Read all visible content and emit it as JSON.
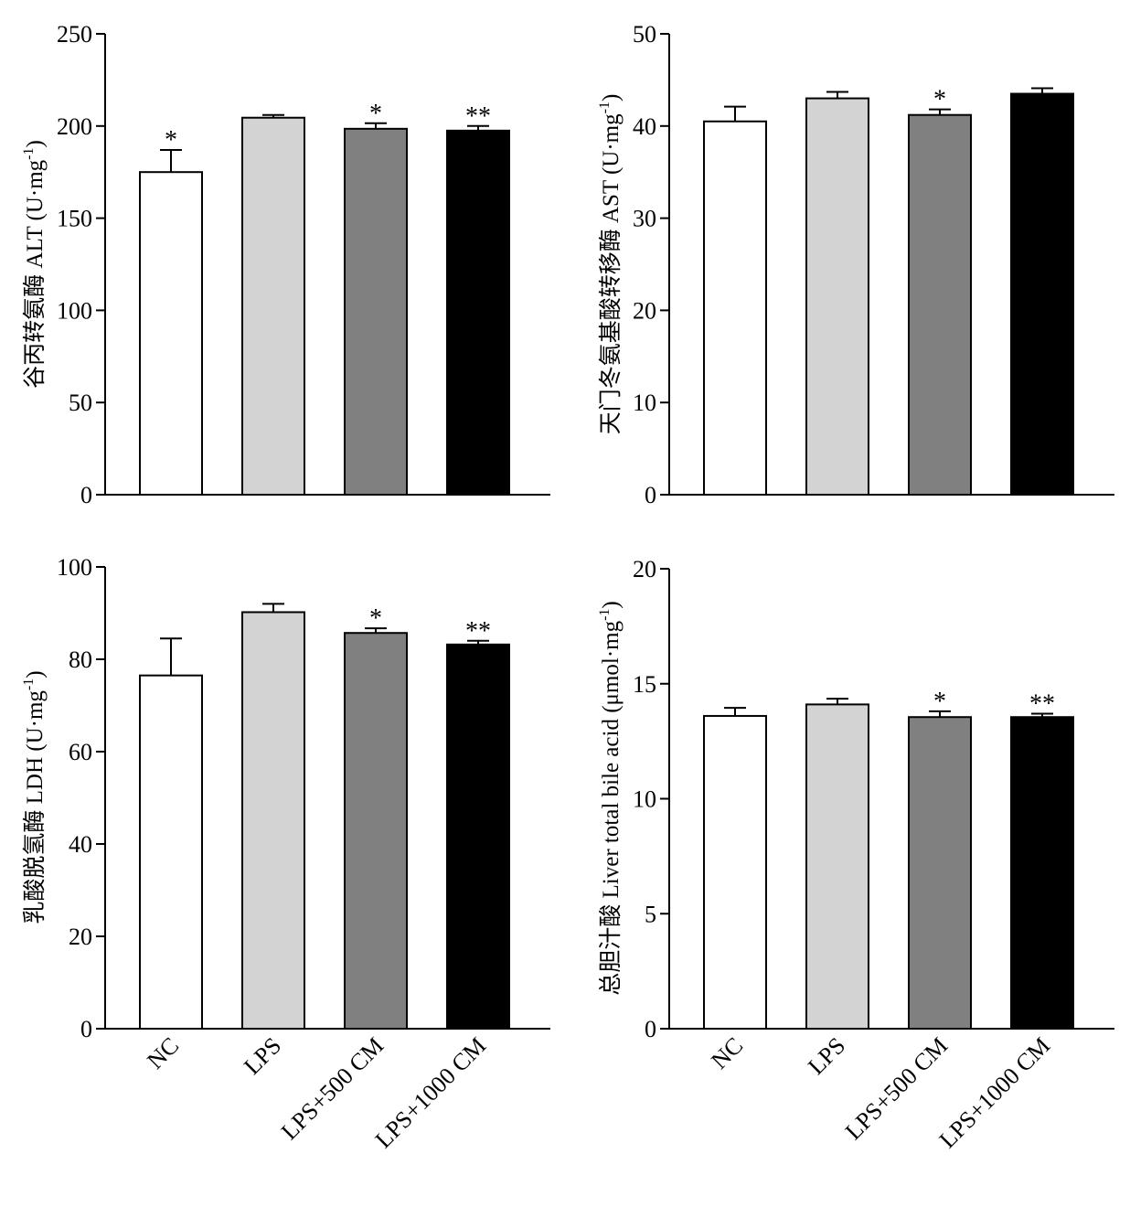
{
  "chart_data": [
    {
      "type": "bar",
      "categories": [
        "NC",
        "LPS",
        "LPS+500 CM",
        "LPS+1000 CM"
      ],
      "values": [
        175,
        204.5,
        198.5,
        197.5
      ],
      "errors": [
        12,
        1.5,
        3,
        2.5
      ],
      "significance": [
        "*",
        "",
        "*",
        "**"
      ],
      "bar_colors": [
        "#ffffff",
        "#d3d3d3",
        "#808080",
        "#000000"
      ],
      "ylabel_main": "谷丙转氨酶 ALT (U·mg",
      "ylabel_sup": "-1",
      "ylabel_end": ")",
      "ylim": [
        0,
        250
      ],
      "yticks": [
        0,
        50,
        100,
        150,
        200,
        250
      ],
      "show_categories": false
    },
    {
      "type": "bar",
      "categories": [
        "NC",
        "LPS",
        "LPS+500 CM",
        "LPS+1000 CM"
      ],
      "values": [
        40.5,
        43,
        41.2,
        43.5
      ],
      "errors": [
        1.6,
        0.7,
        0.6,
        0.6
      ],
      "significance": [
        "",
        "",
        "*",
        ""
      ],
      "bar_colors": [
        "#ffffff",
        "#d3d3d3",
        "#808080",
        "#000000"
      ],
      "ylabel_main": "天门冬氨基酸转移酶 AST (U·mg",
      "ylabel_sup": "-1",
      "ylabel_end": ")",
      "ylim": [
        0,
        50
      ],
      "yticks": [
        0,
        10,
        20,
        30,
        40,
        50
      ],
      "show_categories": false
    },
    {
      "type": "bar",
      "categories": [
        "NC",
        "LPS",
        "LPS+500 CM",
        "LPS+1000 CM"
      ],
      "values": [
        76.5,
        90.2,
        85.7,
        83.2
      ],
      "errors": [
        8,
        1.8,
        1,
        0.8
      ],
      "significance": [
        "",
        "",
        "*",
        "**"
      ],
      "bar_colors": [
        "#ffffff",
        "#d3d3d3",
        "#808080",
        "#000000"
      ],
      "ylabel_main": "乳酸脱氢酶 LDH (U·mg",
      "ylabel_sup": "-1",
      "ylabel_end": ")",
      "ylim": [
        0,
        100
      ],
      "yticks": [
        0,
        20,
        40,
        60,
        80,
        100
      ],
      "show_categories": true
    },
    {
      "type": "bar",
      "categories": [
        "NC",
        "LPS",
        "LPS+500 CM",
        "LPS+1000 CM"
      ],
      "values": [
        13.6,
        14.1,
        13.55,
        13.55
      ],
      "errors": [
        0.35,
        0.25,
        0.25,
        0.15
      ],
      "significance": [
        "",
        "",
        "*",
        "**"
      ],
      "bar_colors": [
        "#ffffff",
        "#d3d3d3",
        "#808080",
        "#000000"
      ],
      "ylabel_main": "总胆汁酸 Liver total bile acid (μmol·mg",
      "ylabel_sup": "-1",
      "ylabel_end": ")",
      "ylim": [
        0,
        20
      ],
      "yticks": [
        0,
        5,
        10,
        15,
        20
      ],
      "show_categories": true
    }
  ]
}
